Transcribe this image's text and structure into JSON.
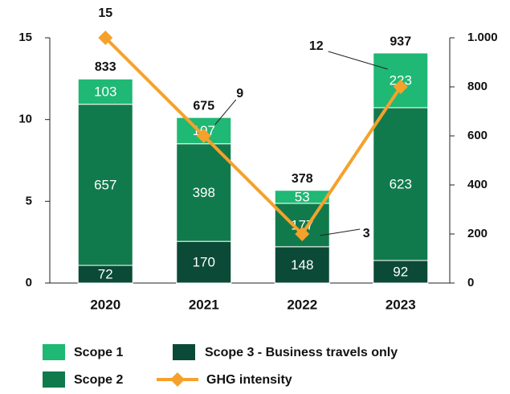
{
  "chart_data": {
    "type": "bar",
    "categories": [
      "2020",
      "2021",
      "2022",
      "2023"
    ],
    "series": [
      {
        "name": "Scope 1",
        "type": "bar",
        "axis": "y2",
        "color": "#1fb874",
        "values": [
          103,
          107,
          53,
          223
        ]
      },
      {
        "name": "Scope 2",
        "type": "bar",
        "axis": "y2",
        "color": "#117a4c",
        "values": [
          657,
          398,
          177,
          623
        ]
      },
      {
        "name": "Scope 3 - Business travels only",
        "type": "bar",
        "axis": "y2",
        "color": "#0b4a37",
        "values": [
          72,
          170,
          148,
          92
        ]
      },
      {
        "name": "GHG intensity",
        "type": "line",
        "axis": "y",
        "color": "#f5a12b",
        "values": [
          15,
          9,
          3,
          12
        ]
      }
    ],
    "totals": [
      833,
      675,
      378,
      937
    ],
    "ylim": [
      0,
      15
    ],
    "yticks": [
      0,
      5,
      10,
      15
    ],
    "y2lim": [
      0,
      1000
    ],
    "y2ticks": [
      0,
      200,
      400,
      600,
      800,
      {
        "value": 1000,
        "label": "1.000"
      }
    ]
  }
}
